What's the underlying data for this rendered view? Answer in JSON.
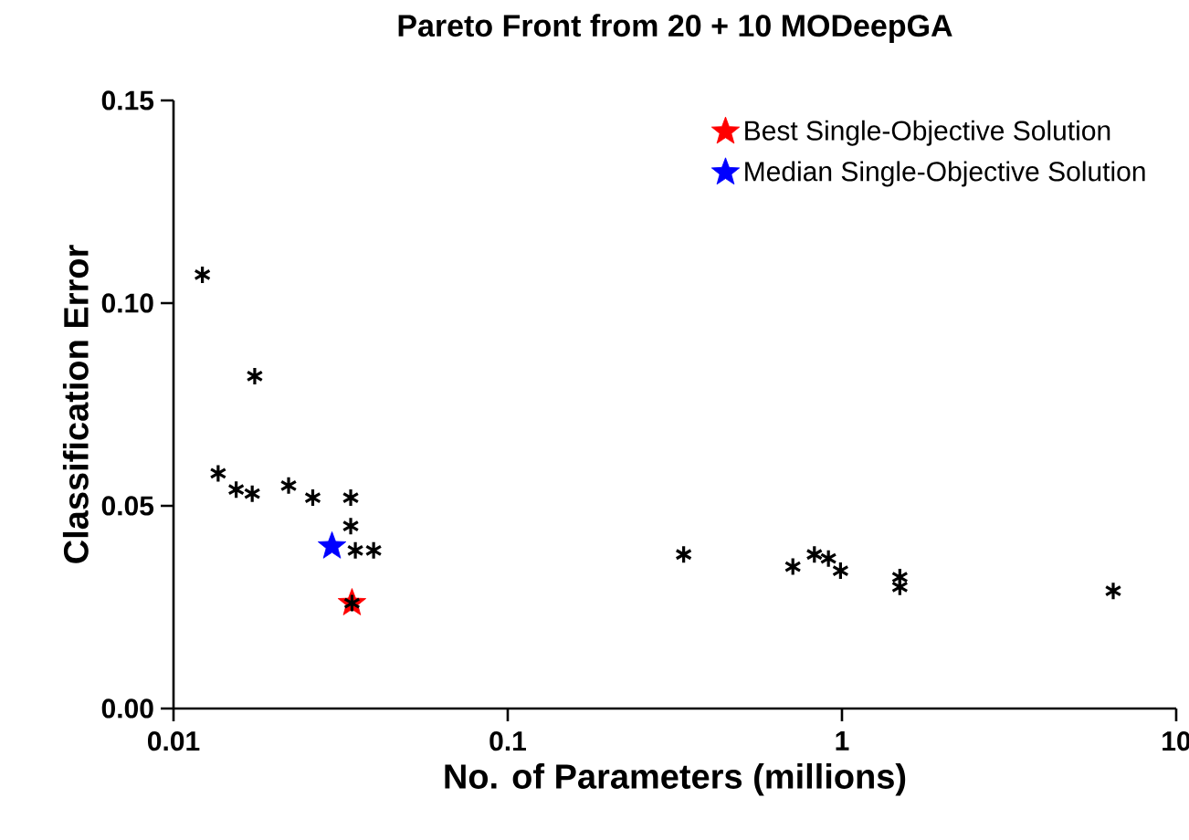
{
  "chart_data": {
    "type": "scatter",
    "title": "Pareto Front from 20 + 10 MODeepGA",
    "xlabel": "No. of Parameters (millions)",
    "ylabel": "Classification Error",
    "log": "x",
    "grid": false,
    "legend": "top right",
    "xlim": [
      0.01,
      10
    ],
    "xticks": [
      0.01,
      0.1,
      1,
      10
    ],
    "ylim": [
      0,
      0.15
    ],
    "yticks": [
      {
        "value": 0,
        "label": "0.00"
      },
      {
        "value": 0.05,
        "label": "0.05"
      },
      {
        "value": 0.1,
        "label": "0.10"
      },
      {
        "value": 0.15,
        "label": "0.15"
      }
    ],
    "series": [
      {
        "color": "#000000",
        "marker": "cross",
        "x": [
          0.0122,
          0.0175,
          0.0136,
          0.0154,
          0.0172,
          0.0221,
          0.0261,
          0.0339,
          0.0339,
          0.035,
          0.0397,
          0.0342,
          0.336,
          0.713,
          0.827,
          0.911,
          0.99,
          1.49,
          1.49,
          6.48
        ],
        "values": [
          0.107,
          0.082,
          0.058,
          0.054,
          0.053,
          0.055,
          0.052,
          0.052,
          0.045,
          0.039,
          0.039,
          0.026,
          0.038,
          0.035,
          0.038,
          0.037,
          0.034,
          0.0324,
          0.03,
          0.029
        ]
      },
      {
        "name": "Best Single-Objective Solution",
        "color": "#ff0000",
        "marker": "star",
        "x": [
          0.0342
        ],
        "values": [
          0.026
        ]
      },
      {
        "name": "Median Single-Objective Solution",
        "color": "#0000ff",
        "marker": "star",
        "x": [
          0.0298
        ],
        "values": [
          0.04
        ]
      }
    ]
  }
}
